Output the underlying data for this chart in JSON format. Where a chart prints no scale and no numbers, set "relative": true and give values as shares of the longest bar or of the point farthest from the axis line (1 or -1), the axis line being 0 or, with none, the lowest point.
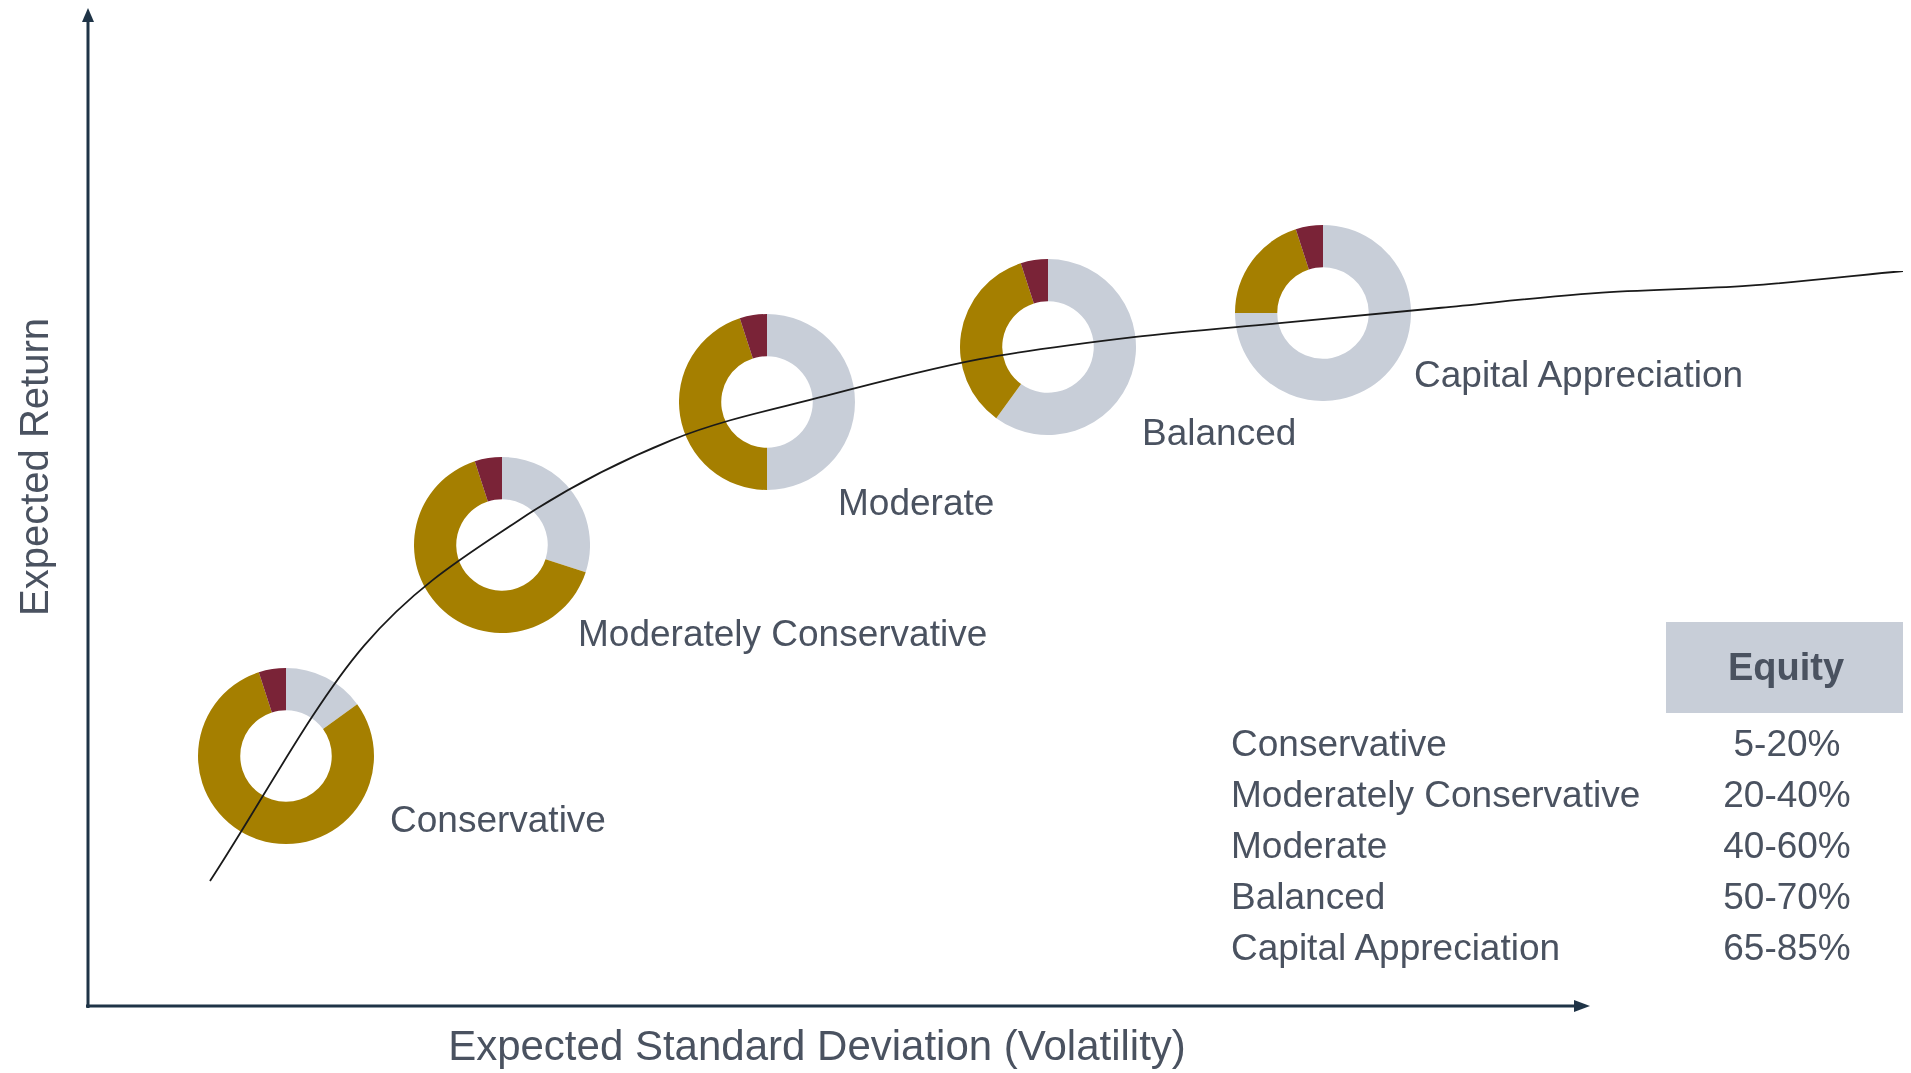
{
  "chart_data": [
    {
      "type": "line",
      "xlabel": "Expected Standard Deviation (Volatility)",
      "ylabel": "Expected Return",
      "relative": true,
      "marker": "none",
      "legend": false,
      "grid": false,
      "color": "#1a1a1a",
      "annotations": [
        "Conservative",
        "Moderately Conservative",
        "Moderate",
        "Balanced",
        "Capital Appreciation"
      ],
      "categories": [
        null,
        null,
        null,
        null,
        null,
        null,
        null,
        null,
        null,
        null,
        null,
        null
      ],
      "values": [
        0.17,
        0.49,
        0.66,
        0.77,
        0.83,
        0.88,
        0.91,
        0.93,
        0.95,
        0.97,
        0.98,
        1
      ]
    },
    {
      "type": "donut",
      "categories": [
        null,
        null,
        null
      ],
      "values": [
        15,
        80,
        5
      ],
      "colors": [
        "#c8ced8",
        "#a57f00",
        "#7a2337"
      ]
    },
    {
      "type": "donut",
      "categories": [
        null,
        null,
        null
      ],
      "values": [
        30,
        65,
        5
      ],
      "colors": [
        "#c8ced8",
        "#a57f00",
        "#7a2337"
      ]
    },
    {
      "type": "donut",
      "categories": [
        null,
        null,
        null
      ],
      "values": [
        50,
        45,
        5
      ],
      "colors": [
        "#c8ced8",
        "#a57f00",
        "#7a2337"
      ]
    },
    {
      "type": "donut",
      "categories": [
        null,
        null,
        null
      ],
      "values": [
        60,
        35,
        5
      ],
      "colors": [
        "#c8ced8",
        "#a57f00",
        "#7a2337"
      ]
    },
    {
      "type": "donut",
      "categories": [
        null,
        null,
        null
      ],
      "values": [
        75,
        20,
        5
      ],
      "colors": [
        "#c8ced8",
        "#a57f00",
        "#7a2337"
      ]
    },
    {
      "type": "other",
      "title": "Equity",
      "categories": [
        "Conservative",
        "Moderately Conservative",
        "Moderate",
        "Balanced",
        "Capital Appreciation"
      ],
      "value_labels": [
        "5-20%",
        "20-40%",
        "40-60%",
        "50-70%",
        "65-85%"
      ]
    }
  ]
}
